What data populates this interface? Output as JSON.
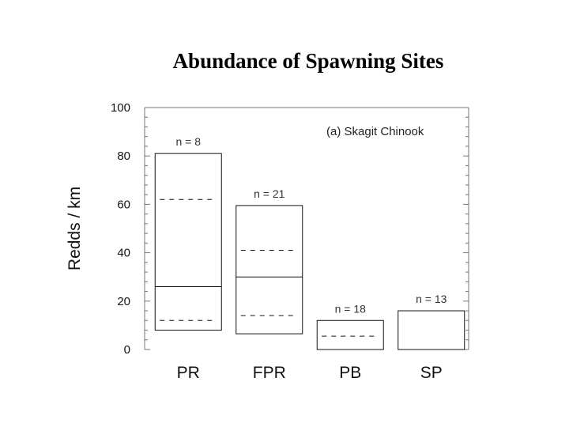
{
  "slide": {
    "title": "Abundance of Spawning Sites"
  },
  "chart_data": {
    "type": "box",
    "title": "Abundance of Spawning Sites",
    "annotation": "(a) Skagit Chinook",
    "xlabel": "",
    "ylabel": "Redds / km",
    "ylim": [
      0,
      100
    ],
    "yticks": [
      0,
      20,
      40,
      60,
      80,
      100
    ],
    "grid": false,
    "categories": [
      "PR",
      "FPR",
      "PB",
      "SP"
    ],
    "boxes": [
      {
        "category": "PR",
        "n_label": "n = 8",
        "low": 8,
        "high": 81,
        "median": 26,
        "dashed": [
          62,
          12
        ]
      },
      {
        "category": "FPR",
        "n_label": "n = 21",
        "low": 6.5,
        "high": 59.5,
        "median": 30,
        "dashed": [
          41,
          14
        ]
      },
      {
        "category": "PB",
        "n_label": "n = 18",
        "low": 0,
        "high": 12,
        "median": null,
        "dashed": [
          5.5
        ]
      },
      {
        "category": "SP",
        "n_label": "n = 13",
        "low": 0,
        "high": 16,
        "median": null,
        "dashed": []
      }
    ]
  }
}
